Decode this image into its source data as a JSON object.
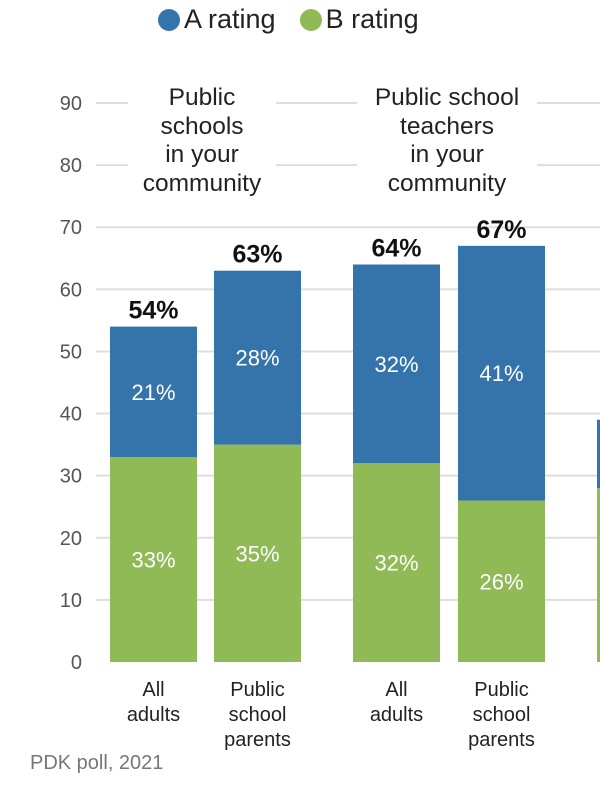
{
  "legend": [
    {
      "label": "A rating",
      "color": "#3574aa"
    },
    {
      "label": "B rating",
      "color": "#8fba56"
    }
  ],
  "group_titles": [
    "Public\nschools\nin your\ncommunity",
    "Public school\nteachers\nin your\ncommunity"
  ],
  "source": "PDK poll, 2021",
  "chart_data": {
    "type": "bar",
    "stacked": true,
    "categories": [
      "All\nadults",
      "Public\nschool\nparents",
      "All\nadults",
      "Public\nschool\nparents"
    ],
    "groups": [
      {
        "title": "Public schools in your community",
        "categories": [
          0,
          1
        ]
      },
      {
        "title": "Public school teachers in your community",
        "categories": [
          2,
          3
        ]
      }
    ],
    "series": [
      {
        "name": "B rating",
        "color": "#8fba56",
        "values": [
          33,
          35,
          32,
          26
        ],
        "labels": [
          "33%",
          "35%",
          "32%",
          "26%"
        ]
      },
      {
        "name": "A rating",
        "color": "#3574aa",
        "values": [
          21,
          28,
          32,
          41
        ],
        "labels": [
          "21%",
          "28%",
          "32%",
          "41%"
        ]
      }
    ],
    "totals": [
      54,
      63,
      64,
      67
    ],
    "total_labels": [
      "54%",
      "63%",
      "64%",
      "67%"
    ],
    "ylim": [
      0,
      90
    ],
    "yticks": [
      0,
      10,
      20,
      30,
      40,
      50,
      60,
      70,
      80,
      90
    ],
    "grid": true,
    "legend_position": "top"
  }
}
